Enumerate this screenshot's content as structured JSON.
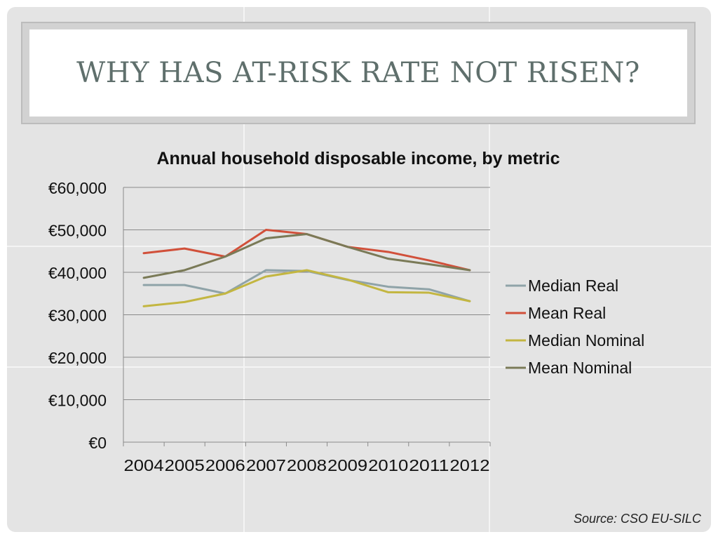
{
  "slide": {
    "title": "WHY HAS AT-RISK RATE NOT RISEN?",
    "source": "Source: CSO EU-SILC"
  },
  "chart_data": {
    "type": "line",
    "title": "Annual household disposable income, by metric",
    "categories": [
      "2004",
      "2005",
      "2006",
      "2007",
      "2008",
      "2009",
      "2010",
      "2011",
      "2012"
    ],
    "yticks": [
      "€0",
      "€10,000",
      "€20,000",
      "€30,000",
      "€40,000",
      "€50,000",
      "€60,000"
    ],
    "ylim": [
      0,
      60000
    ],
    "grid": true,
    "legend_position": "right",
    "series": [
      {
        "name": "Median Real",
        "color": "#8fa3a8",
        "values": [
          37000,
          37000,
          35000,
          40500,
          40300,
          38200,
          36600,
          36000,
          33200
        ]
      },
      {
        "name": "Mean Real",
        "color": "#d1503a",
        "values": [
          44500,
          45600,
          43700,
          50000,
          49000,
          46000,
          44800,
          42800,
          40500
        ]
      },
      {
        "name": "Median Nominal",
        "color": "#c3b641",
        "values": [
          32000,
          33000,
          35000,
          39000,
          40500,
          38300,
          35300,
          35200,
          33200
        ]
      },
      {
        "name": "Mean Nominal",
        "color": "#7a7a57",
        "values": [
          38700,
          40500,
          43700,
          48000,
          49000,
          46000,
          43200,
          41900,
          40500
        ]
      }
    ]
  }
}
